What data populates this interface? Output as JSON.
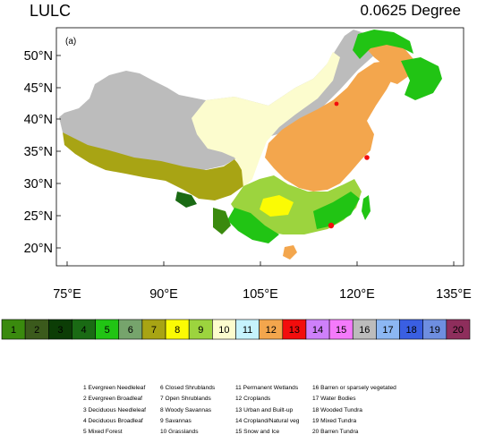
{
  "header": {
    "variable": "LULC",
    "resolution": "0.0625 Degree"
  },
  "panel_label": "(a)",
  "axes": {
    "y_ticks": [
      "50°N",
      "45°N",
      "40°N",
      "35°N",
      "30°N",
      "25°N",
      "20°N"
    ],
    "x_ticks": [
      "75°E",
      "90°E",
      "105°E",
      "120°E",
      "135°E"
    ]
  },
  "colorbar": [
    {
      "value": "1",
      "color": "#3a8a0e"
    },
    {
      "value": "2",
      "color": "#3b5a1c"
    },
    {
      "value": "3",
      "color": "#0c3d06"
    },
    {
      "value": "4",
      "color": "#1a6a14"
    },
    {
      "value": "5",
      "color": "#21c414"
    },
    {
      "value": "6",
      "color": "#76a46c"
    },
    {
      "value": "7",
      "color": "#a8a414"
    },
    {
      "value": "8",
      "color": "#fbfb04"
    },
    {
      "value": "9",
      "color": "#9cd43e"
    },
    {
      "value": "10",
      "color": "#fcfcce"
    },
    {
      "value": "11",
      "color": "#c6f3fd"
    },
    {
      "value": "12",
      "color": "#f3a64d"
    },
    {
      "value": "13",
      "color": "#f30d0d"
    },
    {
      "value": "14",
      "color": "#ce80fa"
    },
    {
      "value": "15",
      "color": "#f47afb"
    },
    {
      "value": "16",
      "color": "#bcbcbc"
    },
    {
      "value": "17",
      "color": "#8cb7f3"
    },
    {
      "value": "18",
      "color": "#3a5fe2"
    },
    {
      "value": "19",
      "color": "#6e8ee0"
    },
    {
      "value": "20",
      "color": "#8e2e5c"
    }
  ],
  "legend": [
    [
      "1 Evergreen Needleleaf",
      "2 Evergreen Broadleaf",
      "3 Deciduous Needleleaf",
      "4 Deciduous Broadleaf",
      "5 Mixed Forest"
    ],
    [
      "6 Closed Shrublands",
      "7 Open Shrublands",
      "8 Woody Savannas",
      "9 Savannas",
      "10 Grasslands"
    ],
    [
      "11 Permanent Wetlands",
      "12 Croplands",
      "13 Urban and Built-up",
      "14 Cropland/Natural veg",
      "15 Snow and Ice"
    ],
    [
      "16 Barren or sparsely vegetated",
      "17 Water Bodies",
      "18 Wooded Tundra",
      "19 Mixed Tundra",
      "20 Barren Tundra"
    ]
  ]
}
